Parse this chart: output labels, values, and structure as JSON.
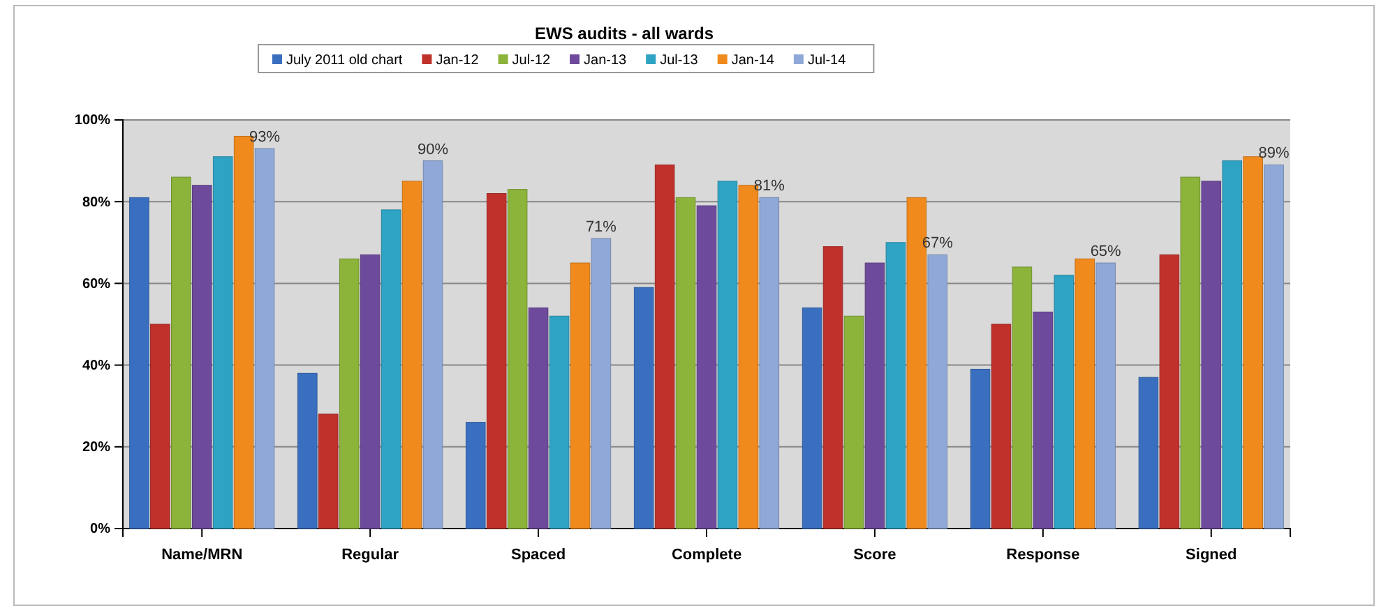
{
  "chart_data": {
    "type": "bar",
    "title": "EWS audits - all wards",
    "categories": [
      "Name/MRN",
      "Regular",
      "Spaced",
      "Complete",
      "Score",
      "Response",
      "Signed"
    ],
    "series": [
      {
        "name": "July 2011 old chart",
        "color": "#3a6fc0",
        "values": [
          81,
          38,
          26,
          59,
          54,
          39,
          37
        ]
      },
      {
        "name": "Jan-12",
        "color": "#c0312b",
        "values": [
          50,
          28,
          82,
          89,
          69,
          50,
          67
        ]
      },
      {
        "name": "Jul-12",
        "color": "#8cb33a",
        "values": [
          86,
          66,
          83,
          81,
          52,
          64,
          86
        ]
      },
      {
        "name": "Jan-13",
        "color": "#6e4a9c",
        "values": [
          84,
          67,
          54,
          79,
          65,
          53,
          85
        ]
      },
      {
        "name": "Jul-13",
        "color": "#2fa3c4",
        "values": [
          91,
          78,
          52,
          85,
          70,
          62,
          90
        ]
      },
      {
        "name": "Jan-14",
        "color": "#f08a1c",
        "values": [
          96,
          85,
          65,
          84,
          81,
          66,
          91
        ]
      },
      {
        "name": "Jul-14",
        "color": "#8fa8d8",
        "values": [
          93,
          90,
          71,
          81,
          67,
          65,
          89
        ],
        "value_labels": [
          "93%",
          "90%",
          "71%",
          "81%",
          "67%",
          "65%",
          "89%"
        ]
      }
    ],
    "ylim": [
      0,
      100
    ],
    "yticks": [
      {
        "value": 0,
        "label": "0%"
      },
      {
        "value": 20,
        "label": "20%"
      },
      {
        "value": 40,
        "label": "40%"
      },
      {
        "value": 60,
        "label": "60%"
      },
      {
        "value": 80,
        "label": "80%"
      },
      {
        "value": 100,
        "label": "100%"
      }
    ],
    "grid": "y",
    "legend": "top"
  }
}
